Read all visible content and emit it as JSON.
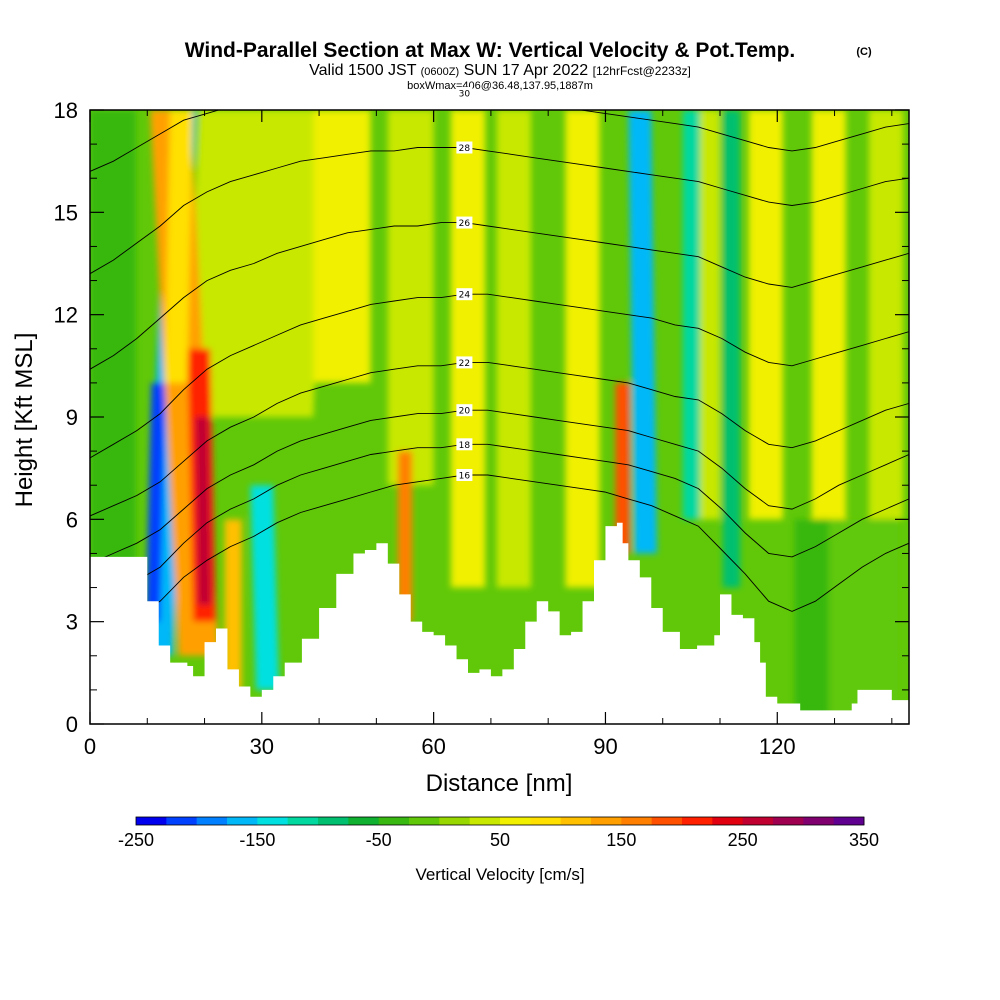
{
  "header": {
    "title_main": "Wind-Parallel Section at Max W: Vertical Velocity & Pot.Temp.",
    "title_badge": "(C)",
    "subtitle_a": "Valid 1500 JST",
    "subtitle_b": "(0600Z)",
    "subtitle_c": "SUN 17 Apr 2022",
    "subtitle_d": "[12hrFcst@2233z]",
    "box_info": "boxWmax=406@36.48,137.95,1887m"
  },
  "chart_data": {
    "type": "heatmap",
    "xlabel": "Distance [nm]",
    "ylabel": "Height [Kft MSL]",
    "xlim": [
      0,
      143
    ],
    "ylim": [
      0,
      18
    ],
    "x_ticks": [
      0,
      30,
      60,
      90,
      120
    ],
    "x_tick_labels": [
      "0",
      "30",
      "60",
      "90",
      "120"
    ],
    "y_ticks": [
      0,
      3,
      6,
      9,
      12,
      15,
      18
    ],
    "y_tick_labels": [
      "0",
      "3",
      "6",
      "9",
      "12",
      "15",
      "18"
    ],
    "colorbar": {
      "label": "Vertical Velocity [cm/s]",
      "min": -250,
      "max": 350,
      "step": 25,
      "tick_values": [
        -250,
        -150,
        -50,
        50,
        150,
        250,
        350
      ],
      "tick_labels": [
        "-250",
        "-150",
        "-50",
        "50",
        "150",
        "250",
        "350"
      ],
      "colors": [
        "#0000ee",
        "#0040ff",
        "#0080ff",
        "#00b8f8",
        "#00e0e0",
        "#00d8a0",
        "#00c070",
        "#10b030",
        "#38b810",
        "#60c808",
        "#98d800",
        "#c8e800",
        "#f0f000",
        "#ffe000",
        "#ffc000",
        "#ffa000",
        "#ff8000",
        "#ff5000",
        "#ff2000",
        "#e00010",
        "#c00030",
        "#a00050",
        "#800070",
        "#600090"
      ]
    },
    "terrain_kft": [
      [
        0,
        4.9
      ],
      [
        8,
        4.9
      ],
      [
        10,
        3.6
      ],
      [
        12,
        2.3
      ],
      [
        14,
        1.8
      ],
      [
        17,
        1.7
      ],
      [
        18,
        1.4
      ],
      [
        20,
        2.4
      ],
      [
        22,
        2.8
      ],
      [
        24,
        1.6
      ],
      [
        26,
        1.1
      ],
      [
        28,
        0.8
      ],
      [
        30,
        1.0
      ],
      [
        32,
        1.4
      ],
      [
        34,
        1.8
      ],
      [
        37,
        2.5
      ],
      [
        40,
        3.4
      ],
      [
        43,
        4.4
      ],
      [
        46,
        5.0
      ],
      [
        48,
        5.1
      ],
      [
        50,
        5.3
      ],
      [
        52,
        4.7
      ],
      [
        54,
        3.8
      ],
      [
        56,
        3.0
      ],
      [
        58,
        2.7
      ],
      [
        60,
        2.6
      ],
      [
        62,
        2.3
      ],
      [
        64,
        1.9
      ],
      [
        66,
        1.5
      ],
      [
        68,
        1.6
      ],
      [
        70,
        1.4
      ],
      [
        72,
        1.6
      ],
      [
        74,
        2.2
      ],
      [
        76,
        3.0
      ],
      [
        78,
        3.6
      ],
      [
        80,
        3.3
      ],
      [
        82,
        2.6
      ],
      [
        84,
        2.7
      ],
      [
        86,
        3.6
      ],
      [
        88,
        4.8
      ],
      [
        90,
        5.8
      ],
      [
        92,
        5.9
      ],
      [
        93,
        5.3
      ],
      [
        94,
        4.8
      ],
      [
        96,
        4.3
      ],
      [
        98,
        3.4
      ],
      [
        100,
        2.7
      ],
      [
        103,
        2.2
      ],
      [
        106,
        2.3
      ],
      [
        109,
        2.6
      ],
      [
        110,
        3.8
      ],
      [
        112,
        3.2
      ],
      [
        114,
        3.1
      ],
      [
        116,
        2.4
      ],
      [
        117,
        1.8
      ],
      [
        118,
        0.8
      ],
      [
        120,
        0.6
      ],
      [
        124,
        0.4
      ],
      [
        130,
        0.4
      ],
      [
        133,
        0.6
      ],
      [
        134,
        1.0
      ],
      [
        138,
        1.0
      ],
      [
        140,
        0.7
      ],
      [
        143,
        0.7
      ]
    ],
    "theta_contours": [
      {
        "value": "16",
        "y": [
          2.7,
          2.9,
          3.2,
          3.6,
          4.3,
          4.8,
          5.2,
          5.5,
          5.9,
          6.2,
          6.4,
          6.6,
          6.8,
          7.0,
          7.1,
          7.2,
          7.3,
          7.3,
          7.2,
          7.1,
          7.0,
          6.9,
          6.8,
          6.6,
          6.4,
          6.1,
          5.8,
          5.1,
          4.4,
          3.6,
          3.3,
          3.6,
          4.1,
          4.6,
          5.0,
          5.3
        ]
      },
      {
        "value": "18",
        "y": [
          3.6,
          3.9,
          4.2,
          4.6,
          5.3,
          5.9,
          6.3,
          6.6,
          7.0,
          7.3,
          7.5,
          7.7,
          7.9,
          8.0,
          8.1,
          8.1,
          8.2,
          8.2,
          8.1,
          8.0,
          7.9,
          7.8,
          7.7,
          7.6,
          7.4,
          7.2,
          6.9,
          6.3,
          5.6,
          5.0,
          4.9,
          5.2,
          5.6,
          6.0,
          6.3,
          6.6
        ]
      },
      {
        "value": "20",
        "y": [
          4.7,
          5.0,
          5.3,
          5.7,
          6.3,
          6.9,
          7.3,
          7.6,
          8.0,
          8.3,
          8.5,
          8.7,
          8.9,
          9.0,
          9.1,
          9.1,
          9.2,
          9.2,
          9.1,
          9.0,
          8.9,
          8.8,
          8.7,
          8.6,
          8.4,
          8.2,
          8.0,
          7.5,
          6.9,
          6.4,
          6.3,
          6.6,
          7.0,
          7.3,
          7.6,
          7.9
        ]
      },
      {
        "value": "22",
        "y": [
          6.1,
          6.4,
          6.7,
          7.1,
          7.7,
          8.3,
          8.7,
          9.0,
          9.4,
          9.7,
          9.9,
          10.1,
          10.3,
          10.4,
          10.5,
          10.5,
          10.6,
          10.6,
          10.5,
          10.4,
          10.3,
          10.2,
          10.1,
          10.0,
          9.8,
          9.6,
          9.5,
          9.1,
          8.6,
          8.2,
          8.1,
          8.3,
          8.6,
          8.9,
          9.2,
          9.4
        ]
      },
      {
        "value": "24",
        "y": [
          7.8,
          8.2,
          8.6,
          9.1,
          9.8,
          10.4,
          10.8,
          11.1,
          11.4,
          11.7,
          11.9,
          12.1,
          12.3,
          12.4,
          12.5,
          12.5,
          12.6,
          12.6,
          12.5,
          12.4,
          12.3,
          12.2,
          12.1,
          12.0,
          11.9,
          11.7,
          11.6,
          11.3,
          10.9,
          10.6,
          10.5,
          10.7,
          10.9,
          11.1,
          11.3,
          11.5
        ]
      },
      {
        "value": "26",
        "y": [
          10.4,
          10.8,
          11.3,
          11.9,
          12.5,
          13.0,
          13.3,
          13.5,
          13.8,
          14.0,
          14.2,
          14.4,
          14.5,
          14.6,
          14.6,
          14.7,
          14.7,
          14.6,
          14.5,
          14.4,
          14.3,
          14.2,
          14.1,
          14.0,
          13.9,
          13.8,
          13.7,
          13.4,
          13.1,
          12.9,
          12.8,
          13.0,
          13.2,
          13.4,
          13.6,
          13.8
        ]
      },
      {
        "value": "28",
        "y": [
          13.2,
          13.6,
          14.1,
          14.6,
          15.2,
          15.6,
          15.9,
          16.1,
          16.3,
          16.5,
          16.6,
          16.7,
          16.8,
          16.8,
          16.9,
          16.9,
          16.9,
          16.8,
          16.7,
          16.6,
          16.5,
          16.4,
          16.3,
          16.2,
          16.1,
          16.0,
          15.9,
          15.7,
          15.5,
          15.3,
          15.2,
          15.3,
          15.5,
          15.7,
          15.9,
          16.0
        ]
      },
      {
        "value": "30",
        "y": [
          16.2,
          16.5,
          16.9,
          17.3,
          17.7,
          17.9,
          18.1,
          18.2,
          18.3,
          18.4,
          18.4,
          18.5,
          18.5,
          18.5,
          18.5,
          18.5,
          18.5,
          18.4,
          18.3,
          18.2,
          18.1,
          18.0,
          17.9,
          17.8,
          17.7,
          17.6,
          17.5,
          17.3,
          17.1,
          16.9,
          16.8,
          16.9,
          17.1,
          17.3,
          17.5,
          17.6
        ]
      }
    ]
  }
}
